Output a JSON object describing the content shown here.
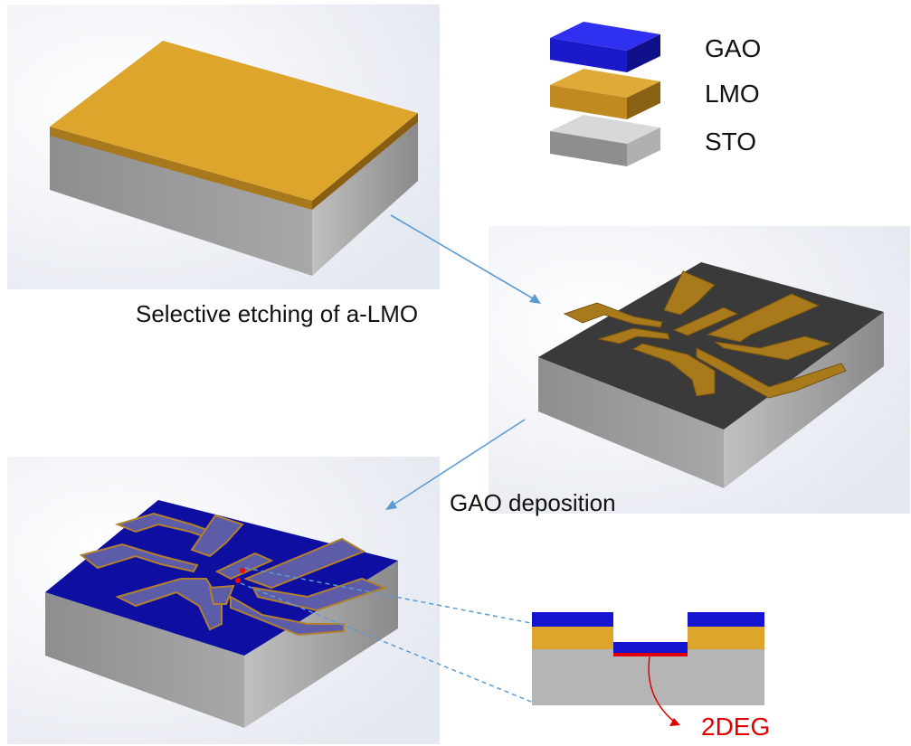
{
  "legend": {
    "items": [
      {
        "label": "GAO",
        "color": "#1010c8"
      },
      {
        "label": "LMO",
        "color": "#d9a22c"
      },
      {
        "label": "STO",
        "color": "#9a9a9a"
      }
    ]
  },
  "steps": {
    "etch_label": "Selective etching of a-LMO",
    "deposit_label": "GAO deposition"
  },
  "cross_section": {
    "channel_label": "2DEG",
    "channel_color": "#e00000"
  },
  "colors": {
    "gao": "#1010c8",
    "lmo": "#d9a22c",
    "sto": "#9a9a9a",
    "dark_top": "#3a3a3a",
    "arrow": "#5b9bd5"
  }
}
